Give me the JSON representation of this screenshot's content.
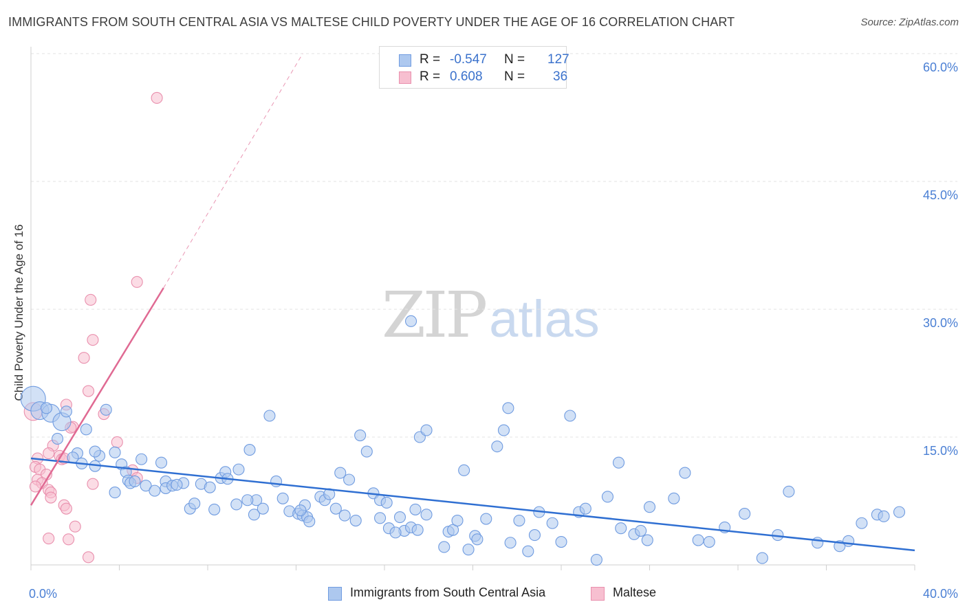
{
  "title": "IMMIGRANTS FROM SOUTH CENTRAL ASIA VS MALTESE CHILD POVERTY UNDER THE AGE OF 16 CORRELATION CHART",
  "source": "Source: ZipAtlas.com",
  "watermark": {
    "zip": "ZIP",
    "atlas": "atlas"
  },
  "legend": {
    "r_label": "R =",
    "n_label": "N =",
    "rows": [
      {
        "r": "-0.547",
        "n": "127"
      },
      {
        "r": "0.608",
        "n": "36"
      }
    ]
  },
  "colors": {
    "blue_fill": "#adc8ef",
    "blue_stroke": "#6f9be0",
    "blue_line": "#2f6fd2",
    "pink_fill": "#f7bfd0",
    "pink_stroke": "#e98fad",
    "pink_line": "#e06a93",
    "tick_text": "#4a7fd4",
    "grid": "#e3e3e3"
  },
  "chart_data": {
    "type": "scatter",
    "xlabel": "",
    "ylabel": "Child Poverty Under the Age of 16",
    "xlim": [
      0,
      40
    ],
    "ylim": [
      0,
      60
    ],
    "x_tick_labels": [
      {
        "v": 0,
        "t": "0.0%"
      },
      {
        "v": 40,
        "t": "40.0%"
      }
    ],
    "y_tick_labels": [
      {
        "v": 15,
        "t": "15.0%"
      },
      {
        "v": 30,
        "t": "30.0%"
      },
      {
        "v": 45,
        "t": "45.0%"
      },
      {
        "v": 60,
        "t": "60.0%"
      }
    ],
    "grid": "horizontal dashed",
    "legend_position": "top-center",
    "series": [
      {
        "name": "Immigrants from South Central Asia",
        "r": -0.547,
        "n": 127,
        "trend": {
          "x": [
            0,
            40
          ],
          "y": [
            12.5,
            1.7
          ]
        },
        "points": [
          [
            0.1,
            19.5,
            3
          ],
          [
            0.4,
            18.1,
            2
          ],
          [
            0.9,
            17.8,
            2
          ],
          [
            1.4,
            16.8,
            2
          ],
          [
            1.2,
            14.8,
            1
          ],
          [
            2.5,
            15.9,
            1
          ],
          [
            3.4,
            18.2,
            1
          ],
          [
            2.1,
            13.1,
            1
          ],
          [
            3.1,
            12.8,
            1
          ],
          [
            2.3,
            11.9,
            1
          ],
          [
            2.9,
            11.6,
            1
          ],
          [
            4.1,
            11.8,
            1
          ],
          [
            5.0,
            12.4,
            1
          ],
          [
            5.9,
            12.0,
            1
          ],
          [
            4.3,
            10.9,
            1
          ],
          [
            4.4,
            9.9,
            1
          ],
          [
            4.5,
            9.6,
            1
          ],
          [
            5.2,
            9.3,
            1
          ],
          [
            5.6,
            8.7,
            1
          ],
          [
            6.1,
            9.8,
            1
          ],
          [
            6.1,
            9.0,
            1
          ],
          [
            6.4,
            9.3,
            1
          ],
          [
            6.9,
            9.6,
            1
          ],
          [
            3.8,
            8.5,
            1
          ],
          [
            7.7,
            9.5,
            1
          ],
          [
            8.1,
            9.1,
            1
          ],
          [
            8.6,
            10.2,
            1
          ],
          [
            8.8,
            10.9,
            1
          ],
          [
            8.9,
            10.1,
            1
          ],
          [
            9.4,
            11.2,
            1
          ],
          [
            9.9,
            13.5,
            1
          ],
          [
            10.2,
            7.6,
            1
          ],
          [
            11.1,
            9.8,
            1
          ],
          [
            10.8,
            17.5,
            1
          ],
          [
            7.2,
            6.6,
            1
          ],
          [
            7.4,
            7.2,
            1
          ],
          [
            8.3,
            6.5,
            1
          ],
          [
            9.3,
            7.1,
            1
          ],
          [
            9.8,
            7.6,
            1
          ],
          [
            10.1,
            5.9,
            1
          ],
          [
            10.5,
            6.6,
            1
          ],
          [
            11.4,
            7.8,
            1
          ],
          [
            11.7,
            6.3,
            1
          ],
          [
            12.1,
            6.0,
            1
          ],
          [
            12.3,
            5.8,
            1
          ],
          [
            12.4,
            7.0,
            1
          ],
          [
            12.5,
            5.6,
            1
          ],
          [
            12.6,
            5.1,
            1
          ],
          [
            13.1,
            8.0,
            1
          ],
          [
            13.3,
            7.6,
            1
          ],
          [
            13.5,
            8.3,
            1
          ],
          [
            13.8,
            6.6,
            1
          ],
          [
            14.0,
            10.8,
            1
          ],
          [
            14.4,
            10.0,
            1
          ],
          [
            14.2,
            5.8,
            1
          ],
          [
            14.7,
            5.2,
            1
          ],
          [
            14.9,
            15.2,
            1
          ],
          [
            15.2,
            13.3,
            1
          ],
          [
            15.5,
            8.4,
            1
          ],
          [
            15.8,
            7.6,
            1
          ],
          [
            16.1,
            7.3,
            1
          ],
          [
            15.8,
            5.5,
            1
          ],
          [
            16.2,
            4.3,
            1
          ],
          [
            16.7,
            5.6,
            1
          ],
          [
            16.9,
            4.0,
            1
          ],
          [
            17.2,
            4.4,
            1
          ],
          [
            17.4,
            6.5,
            1
          ],
          [
            17.5,
            4.1,
            1
          ],
          [
            17.9,
            5.9,
            1
          ],
          [
            17.6,
            15.0,
            1
          ],
          [
            17.9,
            15.8,
            1
          ],
          [
            17.2,
            28.6,
            1
          ],
          [
            18.7,
            2.1,
            1
          ],
          [
            18.9,
            3.9,
            1
          ],
          [
            19.1,
            4.1,
            1
          ],
          [
            19.3,
            5.2,
            1
          ],
          [
            19.6,
            11.1,
            1
          ],
          [
            19.8,
            1.8,
            1
          ],
          [
            20.1,
            3.4,
            1
          ],
          [
            20.2,
            3.0,
            1
          ],
          [
            20.6,
            5.4,
            1
          ],
          [
            21.1,
            13.9,
            1
          ],
          [
            21.4,
            15.8,
            1
          ],
          [
            21.6,
            18.4,
            1
          ],
          [
            21.7,
            2.6,
            1
          ],
          [
            22.1,
            5.2,
            1
          ],
          [
            22.5,
            1.6,
            1
          ],
          [
            22.8,
            3.5,
            1
          ],
          [
            23.0,
            6.2,
            1
          ],
          [
            23.6,
            4.9,
            1
          ],
          [
            24.0,
            2.7,
            1
          ],
          [
            24.4,
            17.5,
            1
          ],
          [
            24.8,
            6.2,
            1
          ],
          [
            25.1,
            6.6,
            1
          ],
          [
            25.6,
            0.6,
            1
          ],
          [
            26.1,
            8.0,
            1
          ],
          [
            26.6,
            12.0,
            1
          ],
          [
            26.7,
            4.3,
            1
          ],
          [
            27.3,
            3.6,
            1
          ],
          [
            27.6,
            4.0,
            1
          ],
          [
            27.9,
            2.9,
            1
          ],
          [
            28.0,
            6.8,
            1
          ],
          [
            29.1,
            7.8,
            1
          ],
          [
            29.6,
            10.8,
            1
          ],
          [
            30.2,
            2.9,
            1
          ],
          [
            30.7,
            2.7,
            1
          ],
          [
            31.4,
            4.4,
            1
          ],
          [
            32.3,
            6.0,
            1
          ],
          [
            33.1,
            0.8,
            1
          ],
          [
            33.8,
            3.5,
            1
          ],
          [
            34.3,
            8.6,
            1
          ],
          [
            35.6,
            2.6,
            1
          ],
          [
            36.6,
            2.2,
            1
          ],
          [
            37.0,
            2.8,
            1
          ],
          [
            37.6,
            4.9,
            1
          ],
          [
            38.3,
            5.9,
            1
          ],
          [
            38.6,
            5.7,
            1
          ],
          [
            39.3,
            6.2,
            1
          ],
          [
            0.7,
            18.4,
            1
          ],
          [
            1.6,
            18.0,
            1
          ],
          [
            2.9,
            13.3,
            1
          ],
          [
            1.9,
            12.6,
            1
          ],
          [
            3.8,
            13.2,
            1
          ],
          [
            4.7,
            9.8,
            1
          ],
          [
            6.6,
            9.4,
            1
          ],
          [
            12.2,
            6.4,
            1
          ],
          [
            16.5,
            3.8,
            1
          ]
        ]
      },
      {
        "name": "Maltese",
        "r": 0.608,
        "n": 36,
        "trend": {
          "x": [
            0,
            6.0
          ],
          "y": [
            7.0,
            32.5
          ]
        },
        "trend_dashed": {
          "x": [
            6.0,
            12.3
          ],
          "y": [
            32.5,
            60.0
          ]
        },
        "points": [
          [
            0.1,
            18.0,
            2
          ],
          [
            5.7,
            54.8,
            1
          ],
          [
            4.8,
            33.2,
            1
          ],
          [
            2.7,
            31.1,
            1
          ],
          [
            2.8,
            26.4,
            1
          ],
          [
            2.4,
            24.3,
            1
          ],
          [
            2.6,
            20.4,
            1
          ],
          [
            1.6,
            18.8,
            1
          ],
          [
            3.3,
            17.7,
            1
          ],
          [
            1.9,
            16.2,
            1
          ],
          [
            1.8,
            16.1,
            1
          ],
          [
            3.9,
            14.4,
            1
          ],
          [
            1.0,
            14.0,
            1
          ],
          [
            0.8,
            13.1,
            1
          ],
          [
            1.3,
            12.8,
            1
          ],
          [
            1.4,
            12.4,
            1
          ],
          [
            1.5,
            12.5,
            1
          ],
          [
            0.3,
            12.5,
            1
          ],
          [
            0.2,
            11.5,
            1
          ],
          [
            0.4,
            11.2,
            1
          ],
          [
            0.7,
            10.6,
            1
          ],
          [
            0.3,
            10.0,
            1
          ],
          [
            0.5,
            9.6,
            1
          ],
          [
            0.2,
            9.2,
            1
          ],
          [
            2.8,
            9.5,
            1
          ],
          [
            0.8,
            8.8,
            1
          ],
          [
            0.9,
            8.5,
            1
          ],
          [
            0.9,
            7.9,
            1
          ],
          [
            1.5,
            7.0,
            1
          ],
          [
            1.6,
            6.6,
            1
          ],
          [
            2.0,
            4.5,
            1
          ],
          [
            0.8,
            3.1,
            1
          ],
          [
            1.7,
            3.0,
            1
          ],
          [
            2.6,
            0.9,
            1
          ],
          [
            4.6,
            11.1,
            1
          ],
          [
            4.8,
            10.2,
            1
          ]
        ]
      }
    ]
  }
}
